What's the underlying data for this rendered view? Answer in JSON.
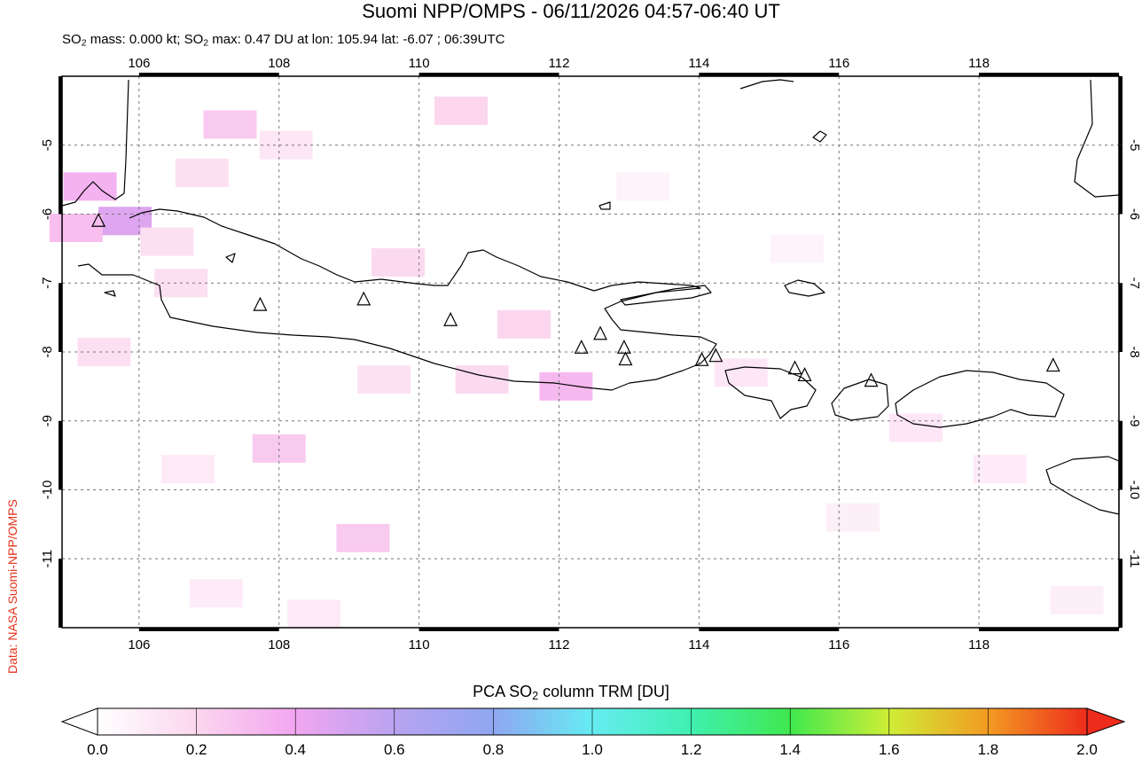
{
  "header": {
    "title": "Suomi NPP/OMPS - 06/11/2026 04:57-06:40 UT",
    "subtitle_parts": [
      "SO",
      "2",
      " mass: 0.000 kt; SO",
      "2",
      " max: 0.47 DU at lon: 105.94 lat: -6.07 ; 06:39UTC"
    ]
  },
  "credit": "Data: NASA Suomi-NPP/OMPS",
  "map": {
    "lon_range": [
      104.9,
      120.0
    ],
    "lat_range": [
      -12.0,
      -4.0
    ],
    "lon_ticks": [
      "106",
      "108",
      "110",
      "112",
      "114",
      "116",
      "118"
    ],
    "lat_ticks": [
      "-5",
      "-6",
      "-7",
      "-8",
      "-9",
      "-10",
      "-11"
    ],
    "grid": "dashed",
    "volcanoes": [
      {
        "lon": 105.42,
        "lat": -6.1
      },
      {
        "lon": 107.73,
        "lat": -7.32
      },
      {
        "lon": 109.21,
        "lat": -7.24
      },
      {
        "lon": 110.45,
        "lat": -7.54
      },
      {
        "lon": 112.32,
        "lat": -7.94
      },
      {
        "lon": 112.59,
        "lat": -7.74
      },
      {
        "lon": 112.93,
        "lat": -7.94
      },
      {
        "lon": 112.95,
        "lat": -8.11
      },
      {
        "lon": 114.04,
        "lat": -8.12
      },
      {
        "lon": 114.24,
        "lat": -8.06
      },
      {
        "lon": 115.37,
        "lat": -8.24
      },
      {
        "lon": 115.51,
        "lat": -8.34
      },
      {
        "lon": 116.46,
        "lat": -8.42
      },
      {
        "lon": 119.06,
        "lat": -8.2
      }
    ],
    "so2_cells": [
      {
        "lon": 105.3,
        "lat": -5.6,
        "du": 0.35
      },
      {
        "lon": 105.8,
        "lat": -6.1,
        "du": 0.47
      },
      {
        "lon": 105.1,
        "lat": -6.2,
        "du": 0.3
      },
      {
        "lon": 106.4,
        "lat": -6.4,
        "du": 0.15
      },
      {
        "lon": 107.3,
        "lat": -4.7,
        "du": 0.25
      },
      {
        "lon": 108.1,
        "lat": -5.0,
        "du": 0.12
      },
      {
        "lon": 106.9,
        "lat": -5.4,
        "du": 0.15
      },
      {
        "lon": 110.6,
        "lat": -4.5,
        "du": 0.2
      },
      {
        "lon": 106.6,
        "lat": -7.0,
        "du": 0.15
      },
      {
        "lon": 105.5,
        "lat": -8.0,
        "du": 0.15
      },
      {
        "lon": 109.7,
        "lat": -6.7,
        "du": 0.18
      },
      {
        "lon": 111.5,
        "lat": -7.6,
        "du": 0.2
      },
      {
        "lon": 112.1,
        "lat": -8.5,
        "du": 0.32
      },
      {
        "lon": 110.9,
        "lat": -8.4,
        "du": 0.18
      },
      {
        "lon": 109.5,
        "lat": -8.4,
        "du": 0.14
      },
      {
        "lon": 108.0,
        "lat": -9.4,
        "du": 0.25
      },
      {
        "lon": 109.2,
        "lat": -10.7,
        "du": 0.25
      },
      {
        "lon": 107.1,
        "lat": -11.5,
        "du": 0.1
      },
      {
        "lon": 106.7,
        "lat": -9.7,
        "du": 0.1
      },
      {
        "lon": 114.6,
        "lat": -8.3,
        "du": 0.12
      },
      {
        "lon": 117.1,
        "lat": -9.1,
        "du": 0.12
      },
      {
        "lon": 118.3,
        "lat": -9.7,
        "du": 0.1
      },
      {
        "lon": 119.4,
        "lat": -11.6,
        "du": 0.08
      },
      {
        "lon": 113.2,
        "lat": -5.6,
        "du": 0.06
      },
      {
        "lon": 115.4,
        "lat": -6.5,
        "du": 0.06
      },
      {
        "lon": 116.2,
        "lat": -10.4,
        "du": 0.08
      },
      {
        "lon": 108.5,
        "lat": -11.8,
        "du": 0.1
      }
    ]
  },
  "colorbar": {
    "title_parts": [
      "PCA SO",
      "2",
      " column TRM [DU]"
    ],
    "tick_labels": [
      "0.0",
      "0.2",
      "0.4",
      "0.6",
      "0.8",
      "1.0",
      "1.2",
      "1.4",
      "1.6",
      "1.8",
      "2.0"
    ],
    "range": [
      0.0,
      2.0
    ],
    "colors": [
      "#ffffff",
      "#fbd6ee",
      "#f2a6f0",
      "#b9a3f0",
      "#8fa6f2",
      "#66ecf2",
      "#3ff0b0",
      "#3fe84e",
      "#cfee36",
      "#f39b22",
      "#ee2c1c"
    ]
  }
}
